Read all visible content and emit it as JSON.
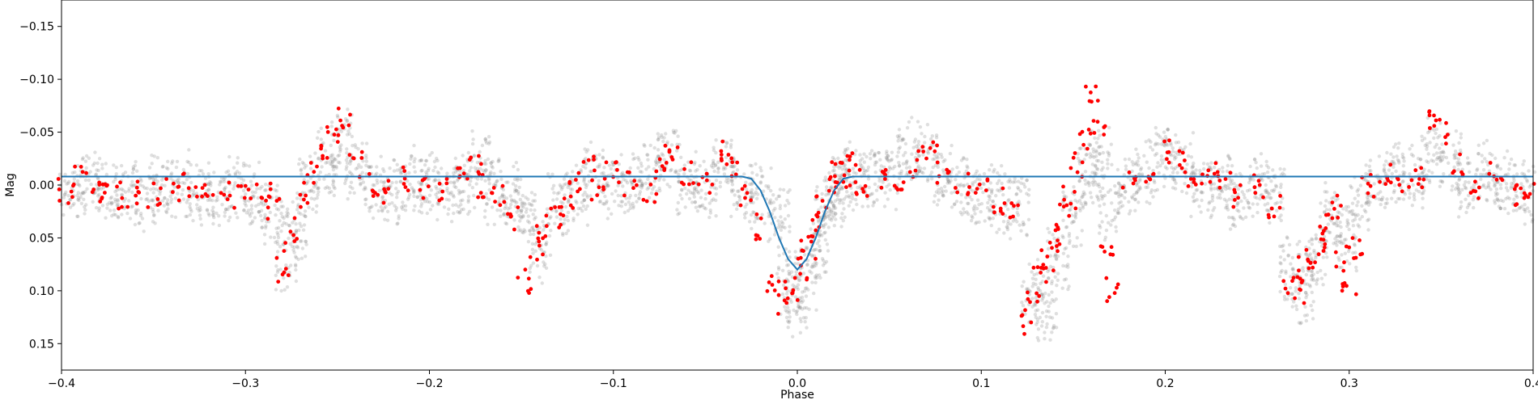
{
  "chart_data": {
    "type": "scatter",
    "title": "",
    "xlabel": "Phase",
    "ylabel": "Mag",
    "xlim": [
      -0.4,
      0.4
    ],
    "ylim": [
      0.175,
      -0.175
    ],
    "y_inverted": true,
    "grid": false,
    "legend": "none",
    "x_ticks": [
      -0.4,
      -0.3,
      -0.2,
      -0.1,
      0.0,
      0.1,
      0.2,
      0.3,
      0.4
    ],
    "x_tick_labels": [
      "−0.4",
      "−0.3",
      "−0.2",
      "−0.1",
      "0.0",
      "0.1",
      "0.2",
      "0.3",
      "0.4"
    ],
    "y_ticks": [
      -0.15,
      -0.1,
      -0.05,
      0.0,
      0.05,
      0.1,
      0.15
    ],
    "y_tick_labels": [
      "−0.15",
      "−0.10",
      "−0.05",
      "0.00",
      "0.05",
      "0.10",
      "0.15"
    ],
    "colors": {
      "raw_points": "#808080",
      "binned_points": "#ff0000",
      "model": "#1f77b4"
    },
    "series": [
      {
        "kind": "points",
        "style": "raw",
        "x": [
          -0.395,
          -0.385,
          -0.375,
          -0.365,
          -0.355,
          -0.345,
          -0.335,
          -0.325,
          -0.315,
          -0.305,
          -0.295,
          -0.285,
          -0.278,
          -0.272,
          -0.265,
          -0.255,
          -0.248,
          -0.24,
          -0.23,
          -0.22,
          -0.21,
          -0.2,
          -0.19,
          -0.18,
          -0.172,
          -0.165,
          -0.155,
          -0.148,
          -0.14,
          -0.13,
          -0.12,
          -0.11,
          -0.1,
          -0.09,
          -0.08,
          -0.07,
          -0.06,
          -0.05,
          -0.04,
          -0.03,
          -0.02,
          -0.01,
          -0.005,
          0.0,
          0.005,
          0.01,
          0.015,
          0.02,
          0.025,
          0.03,
          0.04,
          0.05,
          0.06,
          0.07,
          0.08,
          0.09,
          0.1,
          0.11,
          0.12,
          0.128,
          0.135,
          0.142,
          0.15,
          0.158,
          0.165,
          0.17,
          0.18,
          0.19,
          0.2,
          0.21,
          0.22,
          0.23,
          0.24,
          0.25,
          0.26,
          0.268,
          0.275,
          0.282,
          0.29,
          0.298,
          0.305,
          0.315,
          0.325,
          0.335,
          0.345,
          0.355,
          0.365,
          0.375,
          0.385,
          0.395
        ],
        "y": [
          0.005,
          0.0,
          0.01,
          0.005,
          0.01,
          0.005,
          0.0,
          0.01,
          0.01,
          0.005,
          0.01,
          0.03,
          0.07,
          0.04,
          0.0,
          -0.02,
          -0.04,
          -0.02,
          0.0,
          0.005,
          -0.005,
          0.0,
          0.005,
          0.0,
          -0.02,
          0.005,
          0.01,
          0.03,
          0.06,
          0.02,
          0.01,
          -0.01,
          0.0,
          0.0,
          -0.01,
          -0.03,
          0.0,
          0.005,
          -0.02,
          0.005,
          0.01,
          0.03,
          0.09,
          0.11,
          0.09,
          0.06,
          0.03,
          0.01,
          0.0,
          -0.01,
          -0.005,
          -0.01,
          -0.03,
          -0.03,
          -0.01,
          0.0,
          0.01,
          0.015,
          0.02,
          0.1,
          0.12,
          0.07,
          0.03,
          -0.01,
          -0.03,
          0.02,
          0.0,
          -0.01,
          -0.03,
          -0.02,
          0.0,
          0.0,
          0.01,
          0.0,
          0.01,
          0.08,
          0.1,
          0.07,
          0.03,
          0.05,
          0.02,
          0.0,
          -0.01,
          -0.005,
          -0.03,
          -0.02,
          0.0,
          -0.01,
          0.0,
          0.01
        ]
      },
      {
        "kind": "points",
        "style": "binned",
        "x": [
          -0.398,
          -0.39,
          -0.382,
          -0.374,
          -0.366,
          -0.358,
          -0.35,
          -0.34,
          -0.33,
          -0.32,
          -0.31,
          -0.3,
          -0.29,
          -0.285,
          -0.28,
          -0.276,
          -0.27,
          -0.265,
          -0.258,
          -0.252,
          -0.246,
          -0.24,
          -0.232,
          -0.222,
          -0.212,
          -0.202,
          -0.192,
          -0.182,
          -0.175,
          -0.17,
          -0.162,
          -0.155,
          -0.148,
          -0.142,
          -0.138,
          -0.132,
          -0.126,
          -0.12,
          -0.114,
          -0.108,
          -0.1,
          -0.09,
          -0.08,
          -0.074,
          -0.068,
          -0.06,
          -0.05,
          -0.042,
          -0.035,
          -0.028,
          -0.022,
          -0.014,
          -0.008,
          -0.003,
          0.002,
          0.006,
          0.01,
          0.014,
          0.018,
          0.022,
          0.026,
          0.03,
          0.036,
          0.045,
          0.055,
          0.065,
          0.072,
          0.08,
          0.09,
          0.1,
          0.108,
          0.116,
          0.124,
          0.128,
          0.132,
          0.136,
          0.14,
          0.144,
          0.148,
          0.152,
          0.156,
          0.16,
          0.164,
          0.168,
          0.172,
          0.18,
          0.19,
          0.2,
          0.208,
          0.216,
          0.224,
          0.232,
          0.24,
          0.25,
          0.26,
          0.268,
          0.272,
          0.276,
          0.28,
          0.284,
          0.288,
          0.292,
          0.296,
          0.3,
          0.304,
          0.31,
          0.32,
          0.33,
          0.34,
          0.345,
          0.35,
          0.36,
          0.37,
          0.38,
          0.39,
          0.398
        ],
        "y": [
          0.005,
          -0.005,
          0.005,
          0.0,
          0.01,
          0.005,
          0.01,
          0.005,
          0.0,
          0.005,
          0.01,
          0.01,
          0.0,
          0.02,
          0.08,
          0.05,
          0.02,
          -0.01,
          -0.03,
          -0.05,
          -0.06,
          -0.02,
          0.0,
          0.005,
          -0.005,
          0.0,
          0.005,
          -0.01,
          -0.02,
          0.0,
          0.01,
          0.03,
          0.09,
          0.06,
          0.04,
          0.03,
          0.02,
          0.0,
          -0.015,
          0.005,
          -0.01,
          0.0,
          0.005,
          -0.02,
          -0.03,
          -0.01,
          0.0,
          -0.03,
          -0.02,
          0.01,
          0.04,
          0.09,
          0.11,
          0.1,
          0.08,
          0.06,
          0.04,
          0.02,
          0.0,
          -0.01,
          -0.02,
          -0.01,
          0.0,
          -0.005,
          0.0,
          -0.02,
          -0.03,
          -0.01,
          0.0,
          0.005,
          0.015,
          0.02,
          0.13,
          0.11,
          0.09,
          0.07,
          0.05,
          0.03,
          0.01,
          -0.02,
          -0.04,
          -0.09,
          -0.05,
          0.06,
          0.1,
          0.0,
          -0.005,
          -0.03,
          -0.02,
          0.0,
          -0.01,
          0.0,
          0.01,
          0.0,
          0.02,
          0.09,
          0.1,
          0.08,
          0.07,
          0.05,
          0.04,
          0.02,
          0.07,
          0.1,
          0.06,
          0.0,
          -0.01,
          0.0,
          -0.01,
          -0.06,
          -0.05,
          -0.02,
          0.0,
          -0.01,
          0.01,
          0.0
        ]
      },
      {
        "kind": "line",
        "style": "model",
        "x": [
          -0.4,
          -0.1,
          -0.03,
          -0.025,
          -0.02,
          -0.015,
          -0.01,
          -0.005,
          0.0,
          0.005,
          0.01,
          0.015,
          0.02,
          0.025,
          0.03,
          0.1,
          0.4
        ],
        "y": [
          -0.008,
          -0.008,
          -0.008,
          -0.006,
          0.005,
          0.025,
          0.05,
          0.07,
          0.08,
          0.07,
          0.05,
          0.025,
          0.005,
          -0.006,
          -0.008,
          -0.008,
          -0.008
        ]
      }
    ]
  }
}
